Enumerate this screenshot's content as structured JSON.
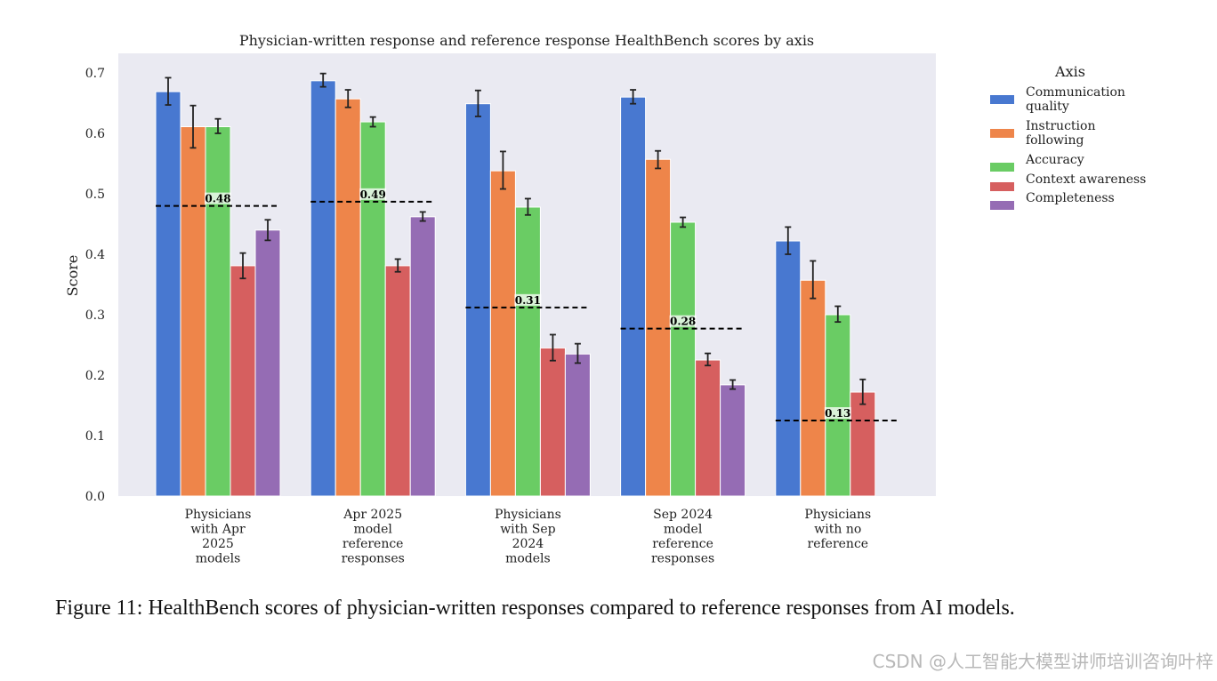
{
  "chart_data": {
    "type": "bar",
    "title": "Physician-written response and reference response HealthBench scores by axis",
    "xlabel": "",
    "ylabel": "Score",
    "ylim": [
      0,
      0.7
    ],
    "yticks": [
      "0.0",
      "0.1",
      "0.2",
      "0.3",
      "0.4",
      "0.5",
      "0.6",
      "0.7"
    ],
    "grid": false,
    "legend_title": "Axis",
    "legend_position": "top-right outside",
    "categories": [
      [
        "Physicians",
        "with Apr",
        "2025",
        "models"
      ],
      [
        "Apr 2025",
        "model",
        "reference",
        "responses"
      ],
      [
        "Physicians",
        "with Sep",
        "2024",
        "models"
      ],
      [
        "Sep 2024",
        "model",
        "reference",
        "responses"
      ],
      [
        "Physicians",
        "with no",
        "reference"
      ]
    ],
    "series": [
      {
        "name": "Communication quality",
        "legend_lines": [
          "Communication",
          "quality"
        ],
        "color": "#4878d0",
        "values": [
          0.669,
          0.687,
          0.649,
          0.66,
          0.422
        ],
        "err_low": [
          0.647,
          0.677,
          0.628,
          0.649,
          0.4
        ],
        "err_high": [
          0.692,
          0.699,
          0.671,
          0.672,
          0.445
        ]
      },
      {
        "name": "Instruction following",
        "legend_lines": [
          "Instruction",
          "following"
        ],
        "color": "#ee854a",
        "values": [
          0.611,
          0.657,
          0.538,
          0.557,
          0.357
        ],
        "err_low": [
          0.576,
          0.643,
          0.508,
          0.542,
          0.327
        ],
        "err_high": [
          0.646,
          0.672,
          0.57,
          0.571,
          0.389
        ]
      },
      {
        "name": "Accuracy",
        "legend_lines": [
          "Accuracy"
        ],
        "color": "#6acc64",
        "values": [
          0.611,
          0.619,
          0.478,
          0.453,
          0.3
        ],
        "err_low": [
          0.6,
          0.611,
          0.465,
          0.445,
          0.288
        ],
        "err_high": [
          0.624,
          0.627,
          0.492,
          0.461,
          0.314
        ]
      },
      {
        "name": "Context awareness",
        "legend_lines": [
          "Context awareness"
        ],
        "color": "#d65f5f",
        "values": [
          0.381,
          0.381,
          0.245,
          0.225,
          0.172
        ],
        "err_low": [
          0.36,
          0.371,
          0.224,
          0.216,
          0.152
        ],
        "err_high": [
          0.402,
          0.392,
          0.267,
          0.236,
          0.193
        ]
      },
      {
        "name": "Completeness",
        "legend_lines": [
          "Completeness"
        ],
        "color": "#956cb4",
        "values": [
          0.44,
          0.462,
          0.235,
          0.184,
          null
        ],
        "err_low": [
          0.423,
          0.455,
          0.22,
          0.177,
          null
        ],
        "err_high": [
          0.457,
          0.47,
          0.252,
          0.192,
          null
        ]
      }
    ],
    "averages": {
      "values": [
        0.48,
        0.487,
        0.312,
        0.277,
        0.125
      ],
      "labels": [
        "0.48",
        "0.49",
        "0.31",
        "0.28",
        "0.13"
      ]
    }
  },
  "caption": "Figure 11:  HealthBench scores of physician-written responses compared to reference responses from AI models.",
  "watermark": "CSDN @人工智能大模型讲师培训咨询叶梓"
}
